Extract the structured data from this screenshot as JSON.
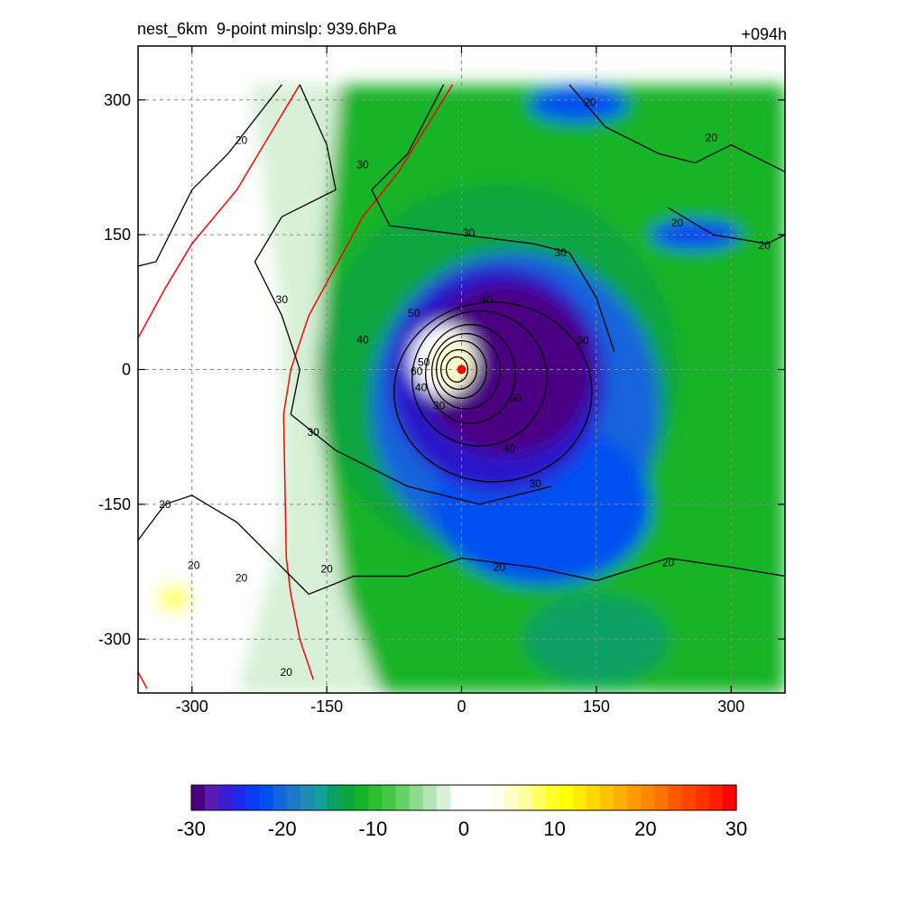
{
  "header": {
    "title": "nest_6km  9-point minslp: 939.6hPa",
    "forecast_hour": "+094h"
  },
  "chart_data": {
    "type": "heatmap",
    "title": "nest_6km  9-point minslp: 939.6hPa",
    "annotation_right": "+094h",
    "xlabel": "",
    "ylabel": "",
    "xlim": [
      -360,
      360
    ],
    "ylim": [
      -360,
      360
    ],
    "xticks": [
      -300,
      -150,
      0,
      150,
      300
    ],
    "yticks": [
      -300,
      -150,
      0,
      150,
      300
    ],
    "grid": true,
    "center_marker": {
      "x": 0,
      "y": 0,
      "color": "#ff0000"
    },
    "colorbar": {
      "min": -30,
      "max": 30,
      "ticks": [
        -30,
        -20,
        -10,
        0,
        10,
        20,
        30
      ],
      "colors": [
        "#4b0082",
        "#5a1cb0",
        "#3c1cd2",
        "#1e2ae8",
        "#0a3cf5",
        "#0050f0",
        "#1464dc",
        "#1e78c8",
        "#1e8cb4",
        "#14a096",
        "#0aa064",
        "#0aa53c",
        "#14b428",
        "#2dbe32",
        "#46c846",
        "#64d264",
        "#8cdc8c",
        "#b4e6b4",
        "#d7f0d7",
        "#ffffff",
        "#ffffff",
        "#ffffff",
        "#fffff0",
        "#ffffc8",
        "#ffffa0",
        "#ffff64",
        "#ffff28",
        "#ffff00",
        "#ffeb00",
        "#ffd700",
        "#ffc300",
        "#ffaf00",
        "#ff9b00",
        "#ff8700",
        "#ff7300",
        "#ff5a00",
        "#ff4600",
        "#ff3200",
        "#ff1e00",
        "#ff0000"
      ]
    },
    "contour_levels": [
      20,
      30,
      40,
      50,
      60
    ],
    "contour_labels": [
      {
        "x": -245,
        "y": 255,
        "text": "20"
      },
      {
        "x": -110,
        "y": 228,
        "text": "30"
      },
      {
        "x": -200,
        "y": 78,
        "text": "30"
      },
      {
        "x": 8,
        "y": 152,
        "text": "30"
      },
      {
        "x": 110,
        "y": 130,
        "text": "30"
      },
      {
        "x": 143,
        "y": 297,
        "text": "20"
      },
      {
        "x": 278,
        "y": 258,
        "text": "20"
      },
      {
        "x": 240,
        "y": 163,
        "text": "20"
      },
      {
        "x": 337,
        "y": 138,
        "text": "20"
      },
      {
        "x": 135,
        "y": 32,
        "text": "30"
      },
      {
        "x": -110,
        "y": 33,
        "text": "40"
      },
      {
        "x": -53,
        "y": 63,
        "text": "50"
      },
      {
        "x": 28,
        "y": 78,
        "text": "40"
      },
      {
        "x": -50,
        "y": -2,
        "text": "60"
      },
      {
        "x": -42,
        "y": 8,
        "text": "50"
      },
      {
        "x": -45,
        "y": -20,
        "text": "40"
      },
      {
        "x": -25,
        "y": -40,
        "text": "30"
      },
      {
        "x": 60,
        "y": -32,
        "text": "50"
      },
      {
        "x": 53,
        "y": -88,
        "text": "40"
      },
      {
        "x": 82,
        "y": -127,
        "text": "30"
      },
      {
        "x": -165,
        "y": -70,
        "text": "30"
      },
      {
        "x": -330,
        "y": -150,
        "text": "20"
      },
      {
        "x": -298,
        "y": -218,
        "text": "20"
      },
      {
        "x": -245,
        "y": -232,
        "text": "20"
      },
      {
        "x": -150,
        "y": -222,
        "text": "20"
      },
      {
        "x": 42,
        "y": -220,
        "text": "20"
      },
      {
        "x": 230,
        "y": -215,
        "text": "20"
      },
      {
        "x": -195,
        "y": -337,
        "text": "20"
      }
    ]
  }
}
